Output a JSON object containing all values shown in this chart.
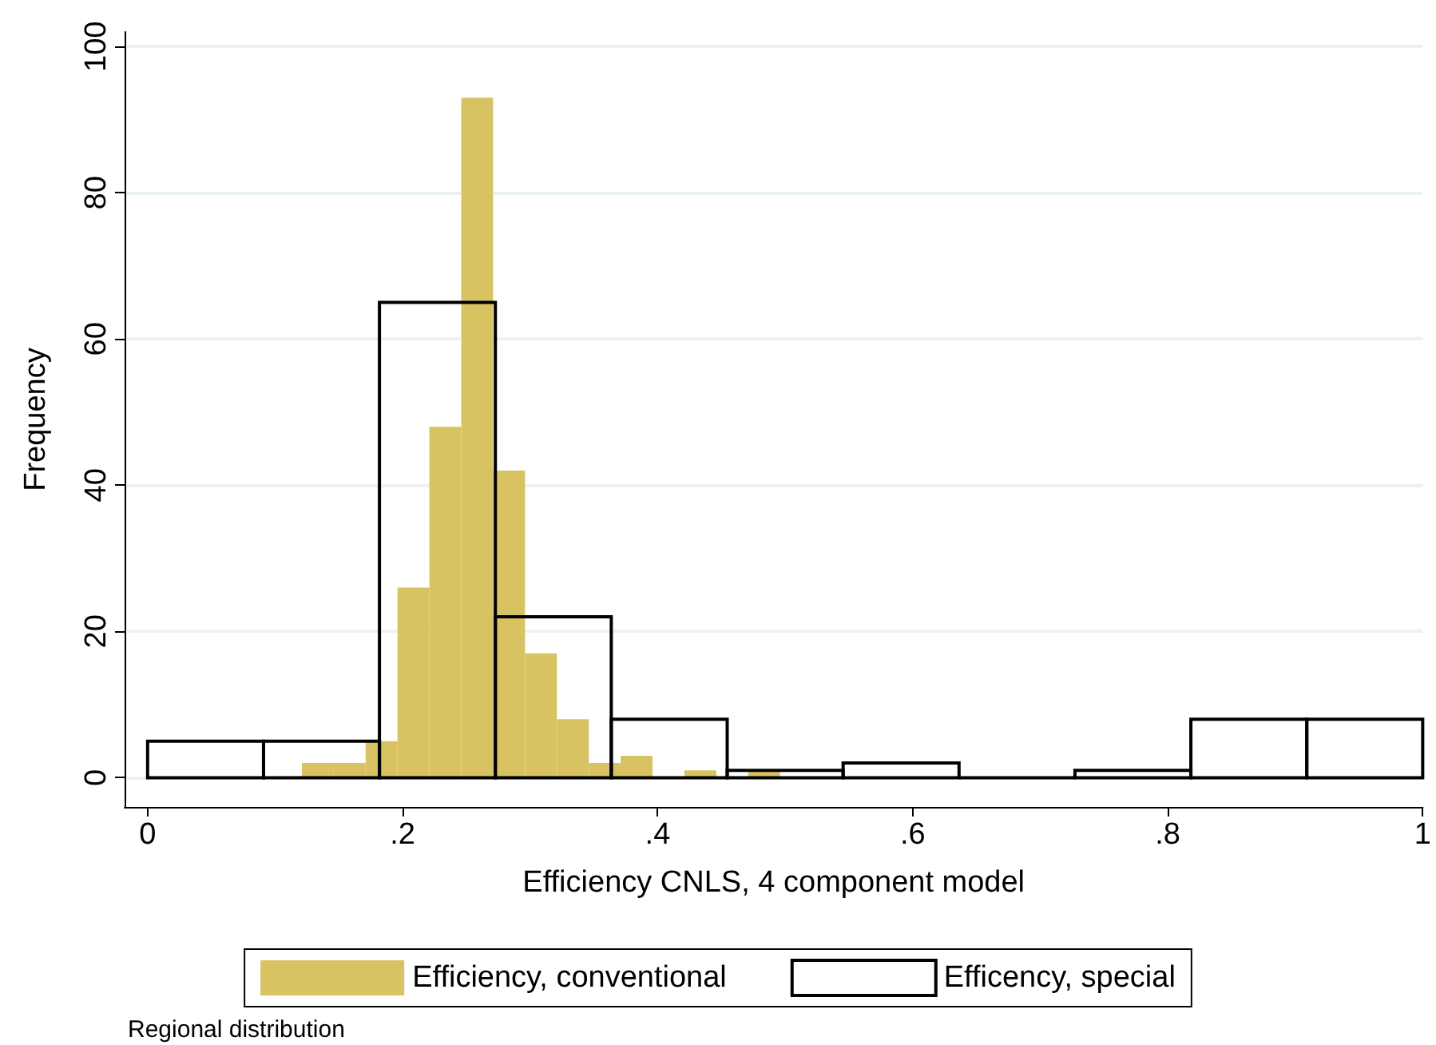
{
  "chart_data": {
    "type": "bar",
    "xlabel": "Efficiency CNLS, 4 component model",
    "ylabel": "Frequency",
    "xlim": [
      -0.018,
      1.0
    ],
    "xticks": [
      0,
      {
        "value": 0.2,
        "label": ".2"
      },
      {
        "value": 0.4,
        "label": ".4"
      },
      {
        "value": 0.6,
        "label": ".6"
      },
      {
        "value": 0.8,
        "label": ".8"
      },
      1
    ],
    "ylim": [
      -4,
      102
    ],
    "yticks": [
      0,
      20,
      40,
      60,
      80,
      100
    ],
    "grid": "y",
    "legend": "bottom",
    "annotations": [
      "Regional distribution"
    ],
    "series": [
      {
        "name": "Efficiency, conventional",
        "color": "#d8c262",
        "x": [
          0.1335,
          0.1585,
          0.1835,
          0.2085,
          0.2335,
          0.2585,
          0.2835,
          0.3085,
          0.3335,
          0.3585,
          0.3835,
          0.4085,
          0.4335,
          0.4585,
          0.4835
        ],
        "values": [
          2,
          2,
          5,
          26,
          48,
          93,
          42,
          17,
          8,
          2,
          3,
          0,
          1,
          0,
          1
        ]
      },
      {
        "name": "Efficency, special",
        "color": "#000000",
        "line_style": "solid",
        "x": [
          0.0455,
          0.1364,
          0.2273,
          0.3182,
          0.4091,
          0.5,
          0.5909,
          0.6818,
          0.7727,
          0.8636,
          0.9545
        ],
        "values": [
          5,
          5,
          65,
          22,
          8,
          1,
          2,
          0,
          1,
          8,
          8
        ]
      }
    ]
  }
}
